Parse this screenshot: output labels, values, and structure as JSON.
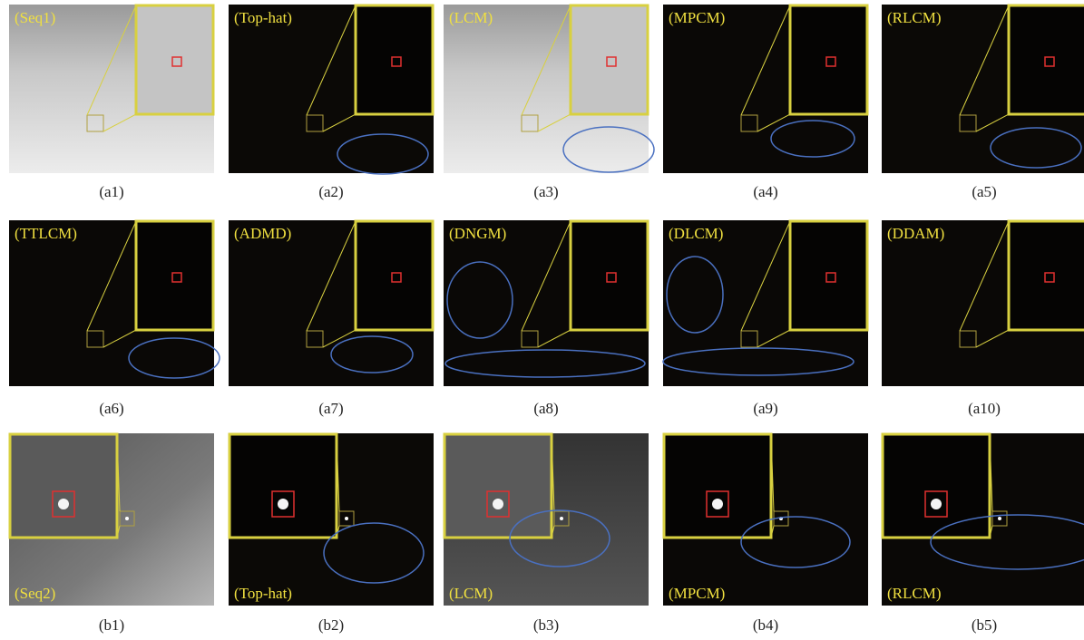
{
  "panels": [
    {
      "label": "(Seq1)",
      "caption": "(a1)"
    },
    {
      "label": "(Top-hat)",
      "caption": "(a2)"
    },
    {
      "label": "(LCM)",
      "caption": "(a3)"
    },
    {
      "label": "(MPCM)",
      "caption": "(a4)"
    },
    {
      "label": "(RLCM)",
      "caption": "(a5)"
    },
    {
      "label": "(TTLCM)",
      "caption": "(a6)"
    },
    {
      "label": "(ADMD)",
      "caption": "(a7)"
    },
    {
      "label": "(DNGM)",
      "caption": "(a8)"
    },
    {
      "label": "(DLCM)",
      "caption": "(a9)"
    },
    {
      "label": "(DDAM)",
      "caption": "(a10)"
    },
    {
      "label": "(Seq2)",
      "caption": "(b1)"
    },
    {
      "label": "(Top-hat)",
      "caption": "(b2)"
    },
    {
      "label": "(LCM)",
      "caption": "(b3)"
    },
    {
      "label": "(MPCM)",
      "caption": "(b4)"
    },
    {
      "label": "(RLCM)",
      "caption": "(b5)"
    }
  ]
}
